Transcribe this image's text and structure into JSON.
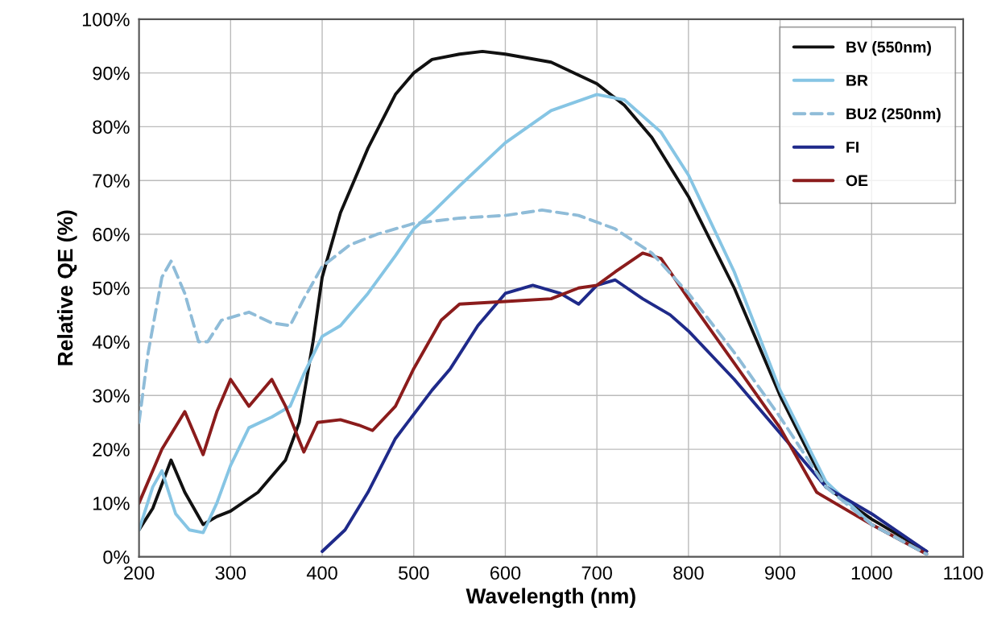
{
  "chart_data": {
    "type": "line",
    "xlabel": "Wavelength (nm)",
    "ylabel": "Relative QE (%)",
    "xlim": [
      200,
      1100
    ],
    "xticks": [
      200,
      300,
      400,
      500,
      600,
      700,
      800,
      900,
      1000,
      1100
    ],
    "ylim": [
      0,
      100
    ],
    "yticks": [
      {
        "value": 0,
        "label": "0%"
      },
      {
        "value": 10,
        "label": "10%"
      },
      {
        "value": 20,
        "label": "20%"
      },
      {
        "value": 30,
        "label": "30%"
      },
      {
        "value": 40,
        "label": "40%"
      },
      {
        "value": 50,
        "label": "50%"
      },
      {
        "value": 60,
        "label": "60%"
      },
      {
        "value": 70,
        "label": "70%"
      },
      {
        "value": 80,
        "label": "80%"
      },
      {
        "value": 90,
        "label": "90%"
      },
      {
        "value": 100,
        "label": "100%"
      }
    ],
    "grid": true,
    "legend": "top right",
    "marker": "none",
    "series": [
      {
        "name": "BV (550nm)",
        "color": "#111111",
        "line_style": "solid",
        "x": [
          200,
          215,
          235,
          250,
          270,
          285,
          300,
          330,
          360,
          375,
          390,
          400,
          420,
          450,
          480,
          500,
          520,
          550,
          575,
          600,
          650,
          700,
          730,
          760,
          800,
          850,
          900,
          950,
          1000,
          1060
        ],
        "values": [
          5,
          9,
          18,
          12,
          6,
          7.5,
          8.5,
          12,
          18,
          25,
          40,
          52,
          64,
          76,
          86,
          90,
          92.5,
          93.5,
          94,
          93.5,
          92,
          88,
          84,
          78,
          67,
          50,
          30,
          13,
          7,
          1
        ]
      },
      {
        "name": "BR",
        "color": "#86c5e4",
        "line_style": "solid",
        "x": [
          200,
          215,
          225,
          240,
          255,
          270,
          285,
          300,
          320,
          345,
          365,
          380,
          400,
          420,
          450,
          480,
          500,
          520,
          550,
          600,
          650,
          700,
          730,
          770,
          800,
          850,
          900,
          950,
          1000,
          1060
        ],
        "values": [
          5,
          13,
          16,
          8,
          5,
          4.5,
          10,
          17,
          24,
          26,
          28,
          34,
          41,
          43,
          49,
          56,
          61,
          64,
          69,
          77,
          83,
          86,
          85,
          79,
          71,
          53,
          31,
          14,
          6,
          0.5
        ]
      },
      {
        "name": "BU2 (250nm)",
        "color": "#8fbcd8",
        "line_style": "dashed",
        "x": [
          200,
          210,
          225,
          235,
          250,
          265,
          275,
          290,
          320,
          345,
          365,
          380,
          400,
          430,
          460,
          500,
          550,
          600,
          640,
          680,
          720,
          760,
          800,
          850,
          900,
          950,
          1000,
          1060
        ],
        "values": [
          25,
          38,
          52,
          55,
          49,
          40,
          40,
          44,
          45.5,
          43.5,
          43,
          48,
          54,
          58,
          60,
          62,
          63,
          63.5,
          64.5,
          63.5,
          61,
          56.5,
          49,
          38,
          26,
          13,
          6,
          0.5
        ]
      },
      {
        "name": "FI",
        "color": "#1f2a8a",
        "line_style": "solid",
        "x": [
          400,
          425,
          450,
          480,
          520,
          540,
          570,
          600,
          630,
          660,
          680,
          700,
          720,
          750,
          780,
          800,
          850,
          900,
          950,
          1000,
          1060
        ],
        "values": [
          1,
          5,
          12,
          22,
          31,
          35,
          43,
          49,
          50.5,
          49,
          47,
          50.5,
          51.5,
          48,
          45,
          42,
          33,
          23,
          13,
          8,
          1
        ]
      },
      {
        "name": "OE",
        "color": "#8b1c1c",
        "line_style": "solid",
        "x": [
          200,
          225,
          250,
          270,
          285,
          300,
          320,
          345,
          360,
          380,
          395,
          420,
          440,
          455,
          480,
          500,
          530,
          550,
          600,
          650,
          680,
          700,
          720,
          750,
          770,
          800,
          850,
          900,
          940,
          1000,
          1060
        ],
        "values": [
          10,
          20,
          27,
          19,
          27,
          33,
          28,
          33,
          28,
          19.5,
          25,
          25.5,
          24.5,
          23.5,
          28,
          35,
          44,
          47,
          47.5,
          48,
          50,
          50.5,
          53,
          56.5,
          55.5,
          48,
          36,
          24,
          12,
          6,
          0.5
        ]
      }
    ]
  }
}
